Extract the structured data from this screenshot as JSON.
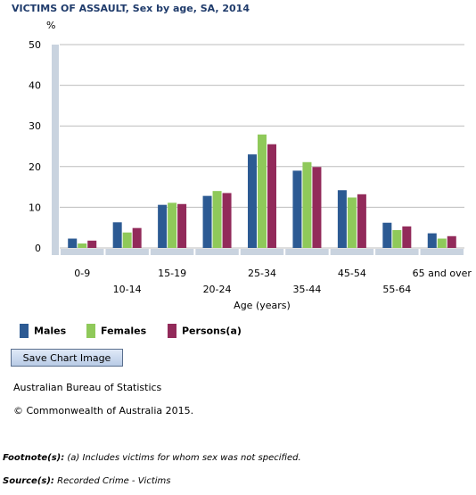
{
  "title": "VICTIMS OF ASSAULT, Sex by age, SA, 2014",
  "save_button_label": "Save Chart Image",
  "publisher": "Australian Bureau of Statistics",
  "copyright": "© Commonwealth of Australia 2015.",
  "footnote_label": "Footnote(s):",
  "footnote_text": "(a) Includes victims for whom sex was not specified.",
  "source_label": "Source(s):",
  "source_text": "Recorded Crime - Victims",
  "colors": {
    "males": "#2c5a93",
    "females": "#8fc95a",
    "persons": "#922a5a",
    "axis": "#c9d3df",
    "grid": "#bdbdbd"
  },
  "chart_data": {
    "type": "bar",
    "title": "VICTIMS OF ASSAULT, Sex by age, SA, 2014",
    "ylabel": "%",
    "xlabel": "Age (years)",
    "ylim": [
      0,
      50
    ],
    "yticks": [
      0,
      10,
      20,
      30,
      40,
      50
    ],
    "grid": true,
    "legend_position": "bottom",
    "categories": [
      "0-9",
      "10-14",
      "15-19",
      "20-24",
      "25-34",
      "35-44",
      "45-54",
      "55-64",
      "65 and over"
    ],
    "series": [
      {
        "name": "Males",
        "values": [
          2.3,
          6.3,
          10.6,
          12.8,
          23.0,
          19.0,
          14.2,
          6.2,
          3.6
        ]
      },
      {
        "name": "Females",
        "values": [
          1.1,
          3.8,
          11.1,
          14.0,
          27.9,
          21.1,
          12.4,
          4.4,
          2.3
        ]
      },
      {
        "name": "Persons(a)",
        "values": [
          1.8,
          4.9,
          10.8,
          13.5,
          25.5,
          19.9,
          13.2,
          5.3,
          2.9
        ]
      }
    ]
  }
}
